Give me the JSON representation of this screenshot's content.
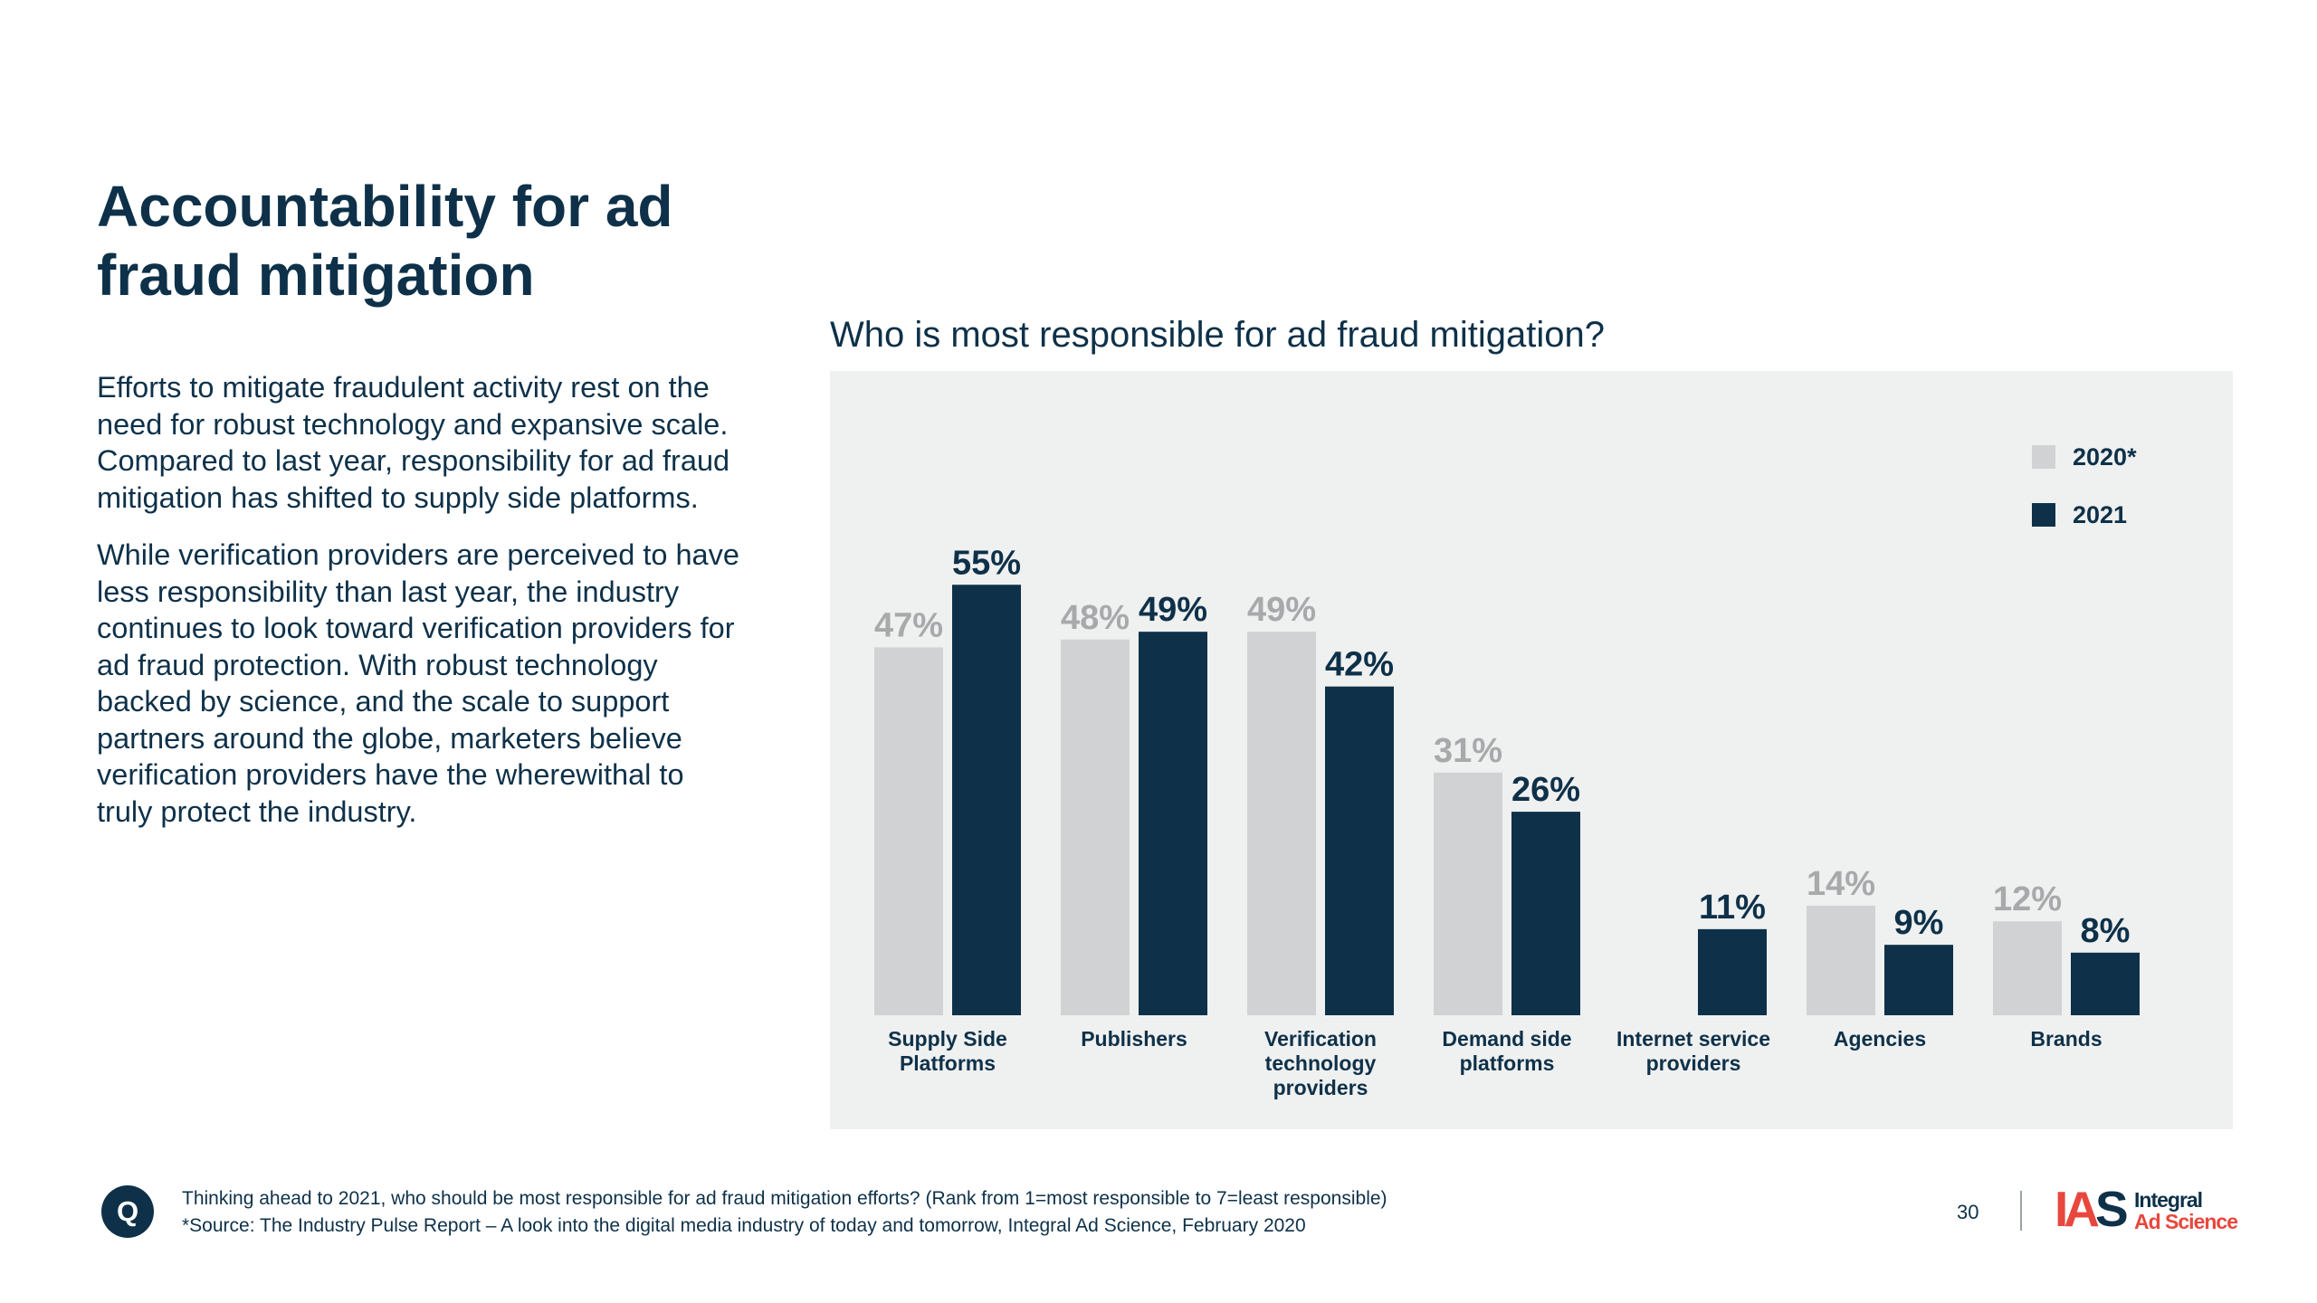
{
  "slide": {
    "title_line1": "Accountability for ad",
    "title_line2": "fraud mitigation",
    "paragraph1": "Efforts to mitigate fraudulent activity rest on the need for robust technology and expansive scale. Compared to last year, responsibility for ad fraud mitigation has shifted to supply side platforms.",
    "paragraph2": "While verification providers are perceived to have less responsibility than last year, the industry continues to look toward verification providers for ad fraud protection. With robust technology backed by science, and the scale to support partners around the globe, marketers believe verification providers have the wherewithal to truly protect the industry."
  },
  "chart_data": {
    "type": "bar",
    "title": "Who is most responsible for ad fraud mitigation?",
    "categories": [
      [
        "Supply Side",
        "Platforms"
      ],
      [
        "Publishers"
      ],
      [
        "Verification",
        "technology",
        "providers"
      ],
      [
        "Demand side",
        "platforms"
      ],
      [
        "Internet service",
        "providers"
      ],
      [
        "Agencies"
      ],
      [
        "Brands"
      ]
    ],
    "series": [
      {
        "name": "2020*",
        "values": [
          47,
          48,
          49,
          31,
          null,
          14,
          12
        ],
        "color": "#d1d2d4",
        "label_color": "#a7a9ab"
      },
      {
        "name": "2021",
        "values": [
          55,
          49,
          42,
          26,
          11,
          9,
          8
        ],
        "color": "#0e3149",
        "label_color": "#0e3149"
      }
    ],
    "value_suffix": "%",
    "ylim": [
      0,
      60
    ],
    "xlabel": "",
    "ylabel": "",
    "grid": false,
    "legend_position": "top-right"
  },
  "footer": {
    "q_label": "Q",
    "question": "Thinking ahead to 2021, who should be most responsible for ad fraud mitigation efforts? (Rank from 1=most responsible to 7=least responsible)",
    "source": "*Source: The Industry Pulse Report – A look into the digital media industry of today and tomorrow, Integral Ad Science, February 2020",
    "page_number": "30"
  },
  "logo": {
    "mark_part1": "IA",
    "mark_part2": "S",
    "text_line1": "Integral",
    "text_line2": "Ad Science"
  }
}
